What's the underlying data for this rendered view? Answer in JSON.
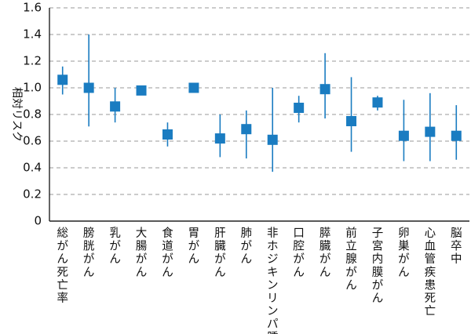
{
  "chart_data": {
    "type": "scatter",
    "title": "",
    "xlabel": "",
    "ylabel": "相対リスク",
    "ylim": [
      0,
      1.6
    ],
    "yticks": [
      "0",
      "0.2",
      "0.4",
      "0.6",
      "0.8",
      "1.0",
      "1.2",
      "1.4",
      "1.6"
    ],
    "grid": true,
    "categories": [
      "総がん死亡率",
      "膀胱がん",
      "乳がん",
      "大腸がん",
      "食道がん",
      "胃がん",
      "肝臓がん",
      "肺がん",
      "非ホジキンリンパ腫",
      "口腔がん",
      "膵臓がん",
      "前立腺がん",
      "子宮内膜がん",
      "卵巣がん",
      "心血管疾患死亡",
      "脳卒中"
    ],
    "series": [
      {
        "values": [
          1.06,
          1.0,
          0.86,
          0.98,
          0.65,
          1.0,
          0.62,
          0.69,
          0.61,
          0.85,
          0.99,
          0.75,
          0.89,
          0.64,
          0.67,
          0.64
        ],
        "lower": [
          0.95,
          0.71,
          0.74,
          0.98,
          0.56,
          1.0,
          0.48,
          0.47,
          0.37,
          0.74,
          0.77,
          0.52,
          0.83,
          0.45,
          0.45,
          0.46
        ],
        "upper": [
          1.16,
          1.4,
          1.0,
          0.98,
          0.74,
          1.0,
          0.8,
          0.83,
          1.0,
          0.94,
          1.26,
          1.08,
          0.94,
          0.91,
          0.96,
          0.87
        ]
      }
    ],
    "color": "#1a7cc1"
  }
}
